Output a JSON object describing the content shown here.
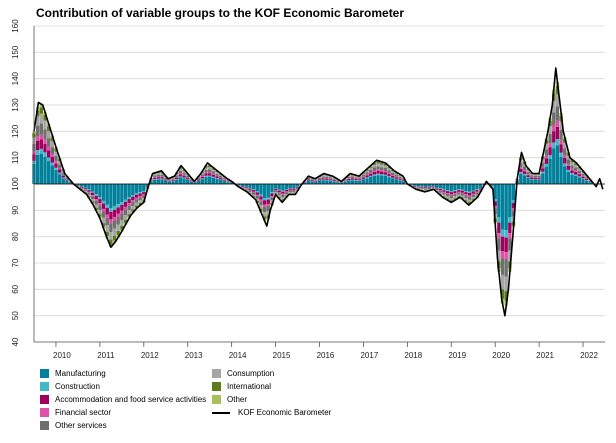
{
  "chart_data": {
    "type": "area",
    "title": "Contribution of variable groups to the KOF Economic Barometer",
    "xlabel": "",
    "ylabel": "",
    "ylim": [
      40,
      160
    ],
    "yticks": [
      40,
      50,
      60,
      70,
      80,
      90,
      100,
      110,
      120,
      130,
      140,
      150,
      160
    ],
    "xlim": [
      2009.5,
      2022.5
    ],
    "xtick_labels": [
      "2010",
      "2011",
      "2012",
      "2013",
      "2014",
      "2015",
      "2016",
      "2017",
      "2018",
      "2019",
      "2020",
      "2021",
      "2022"
    ],
    "baseline": 100,
    "grid": true,
    "legend_position": "bottom",
    "legend": [
      {
        "label": "Manufacturing",
        "color": "#00809a",
        "kind": "swatch"
      },
      {
        "label": "Construction",
        "color": "#44b7c8",
        "kind": "swatch"
      },
      {
        "label": "Accommodation and food service activities",
        "color": "#a0005d",
        "kind": "swatch"
      },
      {
        "label": "Financial sector",
        "color": "#e04fa8",
        "kind": "swatch"
      },
      {
        "label": "Other services",
        "color": "#6f6f6f",
        "kind": "swatch"
      },
      {
        "label": "Consumption",
        "color": "#a6a6a6",
        "kind": "swatch"
      },
      {
        "label": "International",
        "color": "#5c7a1e",
        "kind": "swatch"
      },
      {
        "label": "Other",
        "color": "#a8bf5a",
        "kind": "swatch"
      },
      {
        "label": "KOF Economic Barometer",
        "color": "#000000",
        "kind": "line"
      }
    ],
    "barometer": {
      "name": "KOF Economic Barometer",
      "points": [
        [
          2009.5,
          120
        ],
        [
          2009.6,
          131
        ],
        [
          2009.7,
          130
        ],
        [
          2009.85,
          122
        ],
        [
          2010.0,
          114
        ],
        [
          2010.2,
          104
        ],
        [
          2010.4,
          100
        ],
        [
          2010.55,
          98
        ],
        [
          2010.7,
          96
        ],
        [
          2010.85,
          92
        ],
        [
          2011.0,
          87
        ],
        [
          2011.15,
          80
        ],
        [
          2011.25,
          76
        ],
        [
          2011.35,
          78
        ],
        [
          2011.5,
          82
        ],
        [
          2011.7,
          88
        ],
        [
          2011.85,
          91
        ],
        [
          2012.0,
          93
        ],
        [
          2012.1,
          99
        ],
        [
          2012.2,
          104
        ],
        [
          2012.4,
          105
        ],
        [
          2012.55,
          102
        ],
        [
          2012.7,
          103
        ],
        [
          2012.85,
          107
        ],
        [
          2013.0,
          104
        ],
        [
          2013.15,
          101
        ],
        [
          2013.3,
          104
        ],
        [
          2013.45,
          108
        ],
        [
          2013.6,
          106
        ],
        [
          2013.75,
          104
        ],
        [
          2013.9,
          102
        ],
        [
          2014.0,
          101
        ],
        [
          2014.15,
          99
        ],
        [
          2014.35,
          97
        ],
        [
          2014.55,
          94
        ],
        [
          2014.7,
          88
        ],
        [
          2014.8,
          84
        ],
        [
          2014.88,
          90
        ],
        [
          2015.0,
          96
        ],
        [
          2015.15,
          93
        ],
        [
          2015.3,
          96
        ],
        [
          2015.45,
          96
        ],
        [
          2015.6,
          100
        ],
        [
          2015.75,
          103
        ],
        [
          2015.9,
          102
        ],
        [
          2016.1,
          104
        ],
        [
          2016.3,
          103
        ],
        [
          2016.5,
          101
        ],
        [
          2016.7,
          104
        ],
        [
          2016.9,
          103
        ],
        [
          2017.1,
          106
        ],
        [
          2017.3,
          109
        ],
        [
          2017.5,
          108
        ],
        [
          2017.7,
          105
        ],
        [
          2017.9,
          103
        ],
        [
          2018.0,
          100
        ],
        [
          2018.2,
          98
        ],
        [
          2018.4,
          97
        ],
        [
          2018.6,
          98
        ],
        [
          2018.8,
          95
        ],
        [
          2019.0,
          93
        ],
        [
          2019.2,
          95
        ],
        [
          2019.4,
          92
        ],
        [
          2019.6,
          95
        ],
        [
          2019.8,
          101
        ],
        [
          2019.95,
          98
        ],
        [
          2020.05,
          72
        ],
        [
          2020.15,
          56
        ],
        [
          2020.22,
          50
        ],
        [
          2020.3,
          60
        ],
        [
          2020.4,
          80
        ],
        [
          2020.5,
          102
        ],
        [
          2020.6,
          112
        ],
        [
          2020.7,
          107
        ],
        [
          2020.85,
          104
        ],
        [
          2021.0,
          104
        ],
        [
          2021.1,
          112
        ],
        [
          2021.2,
          120
        ],
        [
          2021.3,
          130
        ],
        [
          2021.38,
          144
        ],
        [
          2021.45,
          134
        ],
        [
          2021.55,
          120
        ],
        [
          2021.7,
          110
        ],
        [
          2021.85,
          108
        ],
        [
          2022.0,
          105
        ],
        [
          2022.1,
          103
        ],
        [
          2022.2,
          101
        ],
        [
          2022.3,
          99
        ],
        [
          2022.38,
          102
        ],
        [
          2022.45,
          98
        ]
      ]
    },
    "stack_shares": [
      {
        "name": "Manufacturing",
        "share": 0.38
      },
      {
        "name": "Construction",
        "share": 0.06
      },
      {
        "name": "Accommodation and food service activities",
        "share": 0.12
      },
      {
        "name": "Financial sector",
        "share": 0.06
      },
      {
        "name": "Other services",
        "share": 0.14
      },
      {
        "name": "Consumption",
        "share": 0.12
      },
      {
        "name": "International",
        "share": 0.08
      },
      {
        "name": "Other",
        "share": 0.04
      }
    ]
  }
}
